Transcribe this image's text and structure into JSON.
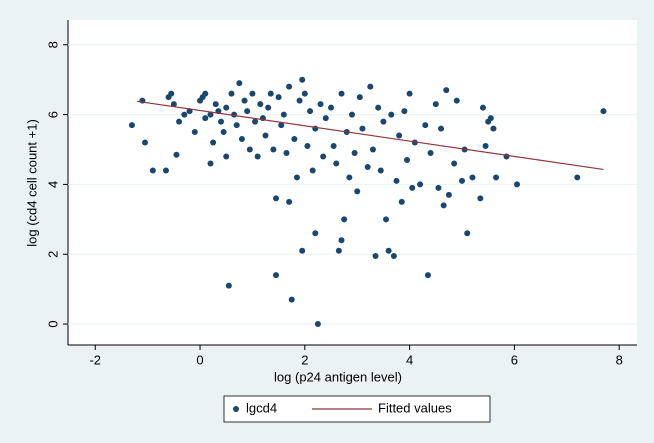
{
  "chart_data": {
    "type": "scatter",
    "xlabel": "log (p24 antigen level)",
    "ylabel": "log (cd4 cell count +1)",
    "xlim": [
      -2.52,
      8.34
    ],
    "ylim": [
      -0.6,
      8.71
    ],
    "xticks": [
      -2,
      0,
      2,
      4,
      6,
      8
    ],
    "yticks": [
      0,
      2,
      4,
      6,
      8
    ],
    "grid": "y",
    "legend": "bottom",
    "series": [
      {
        "name": "lgcd4",
        "type": "scatter",
        "color": "#1a476f",
        "x": [
          -1.3,
          -1.1,
          -1.05,
          -0.9,
          -0.65,
          -0.6,
          -0.55,
          -0.5,
          -0.4,
          -0.45,
          -0.3,
          -0.2,
          -0.1,
          0,
          0.05,
          0.1,
          0.1,
          0.2,
          0.2,
          0.25,
          0.3,
          0.35,
          0.4,
          0.45,
          0.5,
          0.5,
          0.55,
          0.6,
          0.65,
          0.7,
          0.75,
          0.8,
          0.85,
          0.9,
          0.95,
          1.0,
          1.05,
          1.1,
          1.15,
          1.2,
          1.25,
          1.3,
          1.35,
          1.4,
          1.45,
          1.45,
          1.5,
          1.55,
          1.6,
          1.65,
          1.7,
          1.7,
          1.75,
          1.8,
          1.85,
          1.9,
          1.95,
          1.95,
          2.0,
          2.05,
          2.1,
          2.15,
          2.2,
          2.2,
          2.25,
          2.3,
          2.35,
          2.4,
          2.5,
          2.55,
          2.6,
          2.65,
          2.7,
          2.7,
          2.75,
          2.8,
          2.85,
          2.9,
          2.95,
          3.0,
          3.05,
          3.1,
          3.2,
          3.25,
          3.3,
          3.35,
          3.4,
          3.45,
          3.5,
          3.55,
          3.6,
          3.65,
          3.7,
          3.75,
          3.8,
          3.85,
          3.9,
          3.95,
          4.0,
          4.05,
          4.1,
          4.2,
          4.3,
          4.35,
          4.4,
          4.5,
          4.55,
          4.6,
          4.65,
          4.7,
          4.75,
          4.85,
          4.9,
          5.0,
          5.05,
          5.1,
          5.2,
          5.35,
          5.4,
          5.45,
          5.5,
          5.55,
          5.6,
          5.65,
          5.85,
          6.05,
          7.2,
          7.7
        ],
        "values": [
          5.7,
          6.4,
          5.2,
          4.4,
          4.4,
          6.5,
          6.6,
          6.3,
          5.8,
          4.85,
          6.0,
          6.1,
          5.5,
          6.4,
          6.5,
          6.6,
          5.9,
          6.0,
          4.6,
          5.2,
          6.3,
          6.1,
          5.8,
          5.5,
          6.2,
          4.8,
          1.1,
          6.6,
          6.0,
          5.7,
          6.9,
          5.3,
          6.4,
          6.1,
          5.0,
          6.6,
          5.8,
          4.8,
          6.3,
          5.9,
          5.4,
          6.2,
          6.6,
          5.0,
          3.6,
          1.4,
          6.5,
          5.7,
          6.0,
          4.9,
          6.8,
          3.5,
          0.7,
          5.3,
          4.2,
          6.4,
          7.0,
          2.1,
          6.6,
          5.1,
          6.1,
          4.4,
          5.6,
          2.6,
          0.0,
          6.3,
          4.8,
          5.9,
          6.2,
          5.1,
          4.6,
          2.1,
          2.4,
          6.6,
          3.0,
          5.5,
          4.2,
          6.0,
          4.9,
          3.8,
          6.5,
          5.6,
          4.5,
          6.8,
          5.0,
          1.95,
          6.2,
          4.4,
          5.8,
          3.0,
          2.1,
          6.0,
          1.95,
          4.1,
          5.4,
          3.5,
          6.1,
          4.7,
          6.6,
          3.9,
          5.2,
          4.0,
          5.7,
          1.4,
          4.9,
          6.3,
          3.9,
          5.6,
          3.4,
          6.7,
          3.7,
          4.6,
          6.4,
          4.1,
          5.0,
          2.6,
          4.2,
          3.6,
          6.2,
          5.1,
          5.8,
          5.9,
          5.6,
          4.2,
          4.8,
          4.0,
          4.2,
          6.1
        ]
      },
      {
        "name": "Fitted values",
        "type": "line",
        "color": "#90353b",
        "x": [
          -1.2,
          7.7
        ],
        "values": [
          6.38,
          4.43
        ]
      }
    ]
  }
}
